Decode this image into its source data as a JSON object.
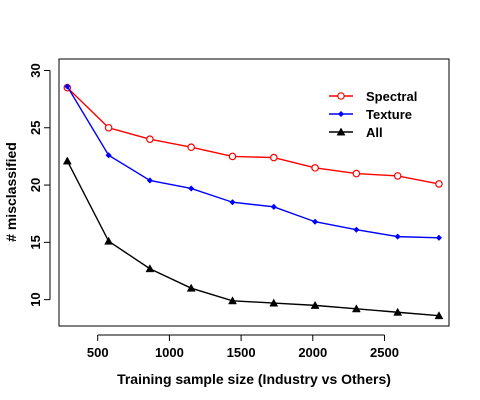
{
  "chart_data": {
    "type": "line",
    "title": "",
    "xlabel": "Training sample size (Industry vs Others)",
    "ylabel": "# misclassified",
    "xlim": [
      230,
      2950
    ],
    "ylim": [
      7.7,
      31.0
    ],
    "xticks": [
      500,
      1000,
      1500,
      2000,
      2500
    ],
    "yticks": [
      10,
      15,
      20,
      25,
      30
    ],
    "x": [
      288,
      576,
      864,
      1152,
      1440,
      1728,
      2016,
      2304,
      2592,
      2880
    ],
    "legend_position": "top-right",
    "grid": false,
    "series": [
      {
        "name": "Spectral",
        "color": "#ff0000",
        "marker": "open-circle",
        "values": [
          28.5,
          25.0,
          24.0,
          23.3,
          22.5,
          22.4,
          21.5,
          21.0,
          20.8,
          20.1
        ]
      },
      {
        "name": "Texture",
        "color": "#0000ff",
        "marker": "filled-diamond",
        "values": [
          28.6,
          22.6,
          20.4,
          19.7,
          18.5,
          18.1,
          16.8,
          16.1,
          15.5,
          15.4
        ]
      },
      {
        "name": "All",
        "color": "#000000",
        "marker": "filled-triangle",
        "values": [
          22.1,
          15.1,
          12.7,
          11.0,
          9.9,
          9.7,
          9.5,
          9.2,
          8.9,
          8.6
        ]
      }
    ]
  }
}
